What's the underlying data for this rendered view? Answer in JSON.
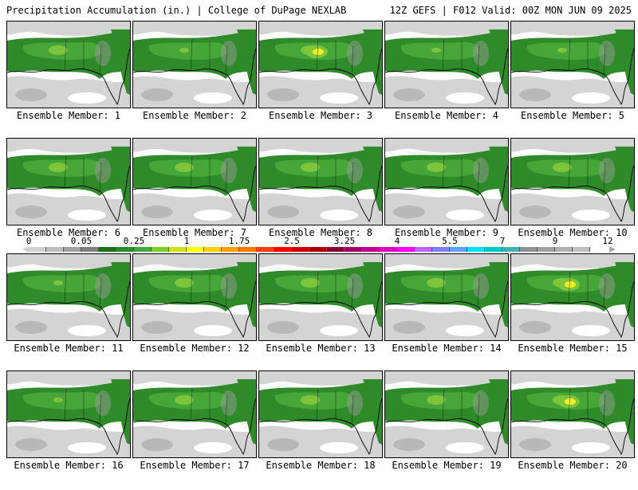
{
  "header": {
    "left": "Precipitation Accumulation (in.) | College of DuPage NEXLAB",
    "right": "12Z GEFS | F012 Valid: 00Z MON JUN 09 2025"
  },
  "colors": {
    "trace_light": "#d4d4d4",
    "trace_mid": "#a0a0a0",
    "green_dark": "#2f8a2a",
    "green_mid": "#4aa83a",
    "green_light": "#7dc63c",
    "yellow": "#f0f020",
    "coastline": "#000000"
  },
  "scale": {
    "ticks": [
      "0",
      "0.05",
      "0.25",
      "1",
      "1.75",
      "2.5",
      "3.25",
      "4",
      "5.5",
      "7",
      "9",
      "12"
    ],
    "swatches": [
      "#d2d2d2",
      "#bebebe",
      "#a0a0a0",
      "#7f7f7f",
      "#1c6e1c",
      "#2b8a2b",
      "#42a642",
      "#7ccc2c",
      "#d0e020",
      "#ffff00",
      "#ffd000",
      "#ffa000",
      "#ff7800",
      "#ff4000",
      "#ff0000",
      "#d00000",
      "#a80000",
      "#880030",
      "#a00060",
      "#c00090",
      "#e000c0",
      "#ff00ff",
      "#c060ff",
      "#8080ff",
      "#60a0ff",
      "#00e0ff",
      "#00c8c8",
      "#40b0b0",
      "#909090",
      "#a0a0a0",
      "#b0b0b0",
      "#c0c0c0"
    ]
  },
  "members": [
    {
      "label": "Ensemble Member: 1",
      "intensity": 1
    },
    {
      "label": "Ensemble Member: 2",
      "intensity": 0
    },
    {
      "label": "Ensemble Member: 3",
      "intensity": 2
    },
    {
      "label": "Ensemble Member: 4",
      "intensity": 0
    },
    {
      "label": "Ensemble Member: 5",
      "intensity": 0
    },
    {
      "label": "Ensemble Member: 6",
      "intensity": 1
    },
    {
      "label": "Ensemble Member: 7",
      "intensity": 1
    },
    {
      "label": "Ensemble Member: 8",
      "intensity": 1
    },
    {
      "label": "Ensemble Member: 9",
      "intensity": 1
    },
    {
      "label": "Ensemble Member: 10",
      "intensity": 1
    },
    {
      "label": "Ensemble Member: 11",
      "intensity": 0
    },
    {
      "label": "Ensemble Member: 12",
      "intensity": 1
    },
    {
      "label": "Ensemble Member: 13",
      "intensity": 1
    },
    {
      "label": "Ensemble Member: 14",
      "intensity": 1
    },
    {
      "label": "Ensemble Member: 15",
      "intensity": 2
    },
    {
      "label": "Ensemble Member: 16",
      "intensity": 0
    },
    {
      "label": "Ensemble Member: 17",
      "intensity": 1
    },
    {
      "label": "Ensemble Member: 18",
      "intensity": 1
    },
    {
      "label": "Ensemble Member: 19",
      "intensity": 1
    },
    {
      "label": "Ensemble Member: 20",
      "intensity": 2
    }
  ]
}
